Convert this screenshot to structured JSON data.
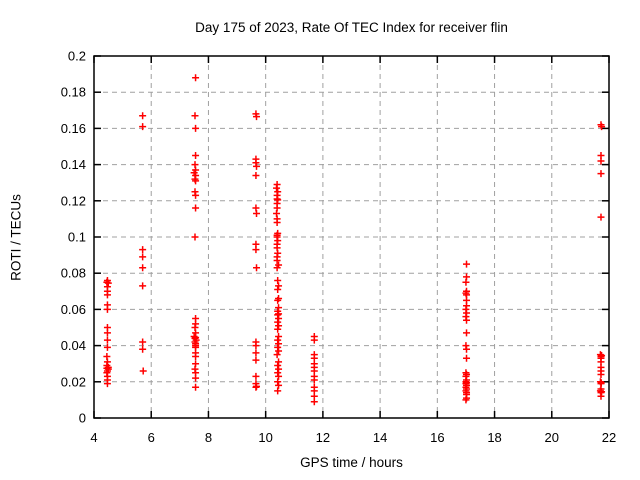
{
  "chart_data": {
    "type": "scatter",
    "title": "Day 175 of 2023, Rate Of TEC Index for receiver flin",
    "xlabel": "GPS time / hours",
    "ylabel": "ROTI / TECUs",
    "xlim": [
      4,
      22
    ],
    "ylim": [
      0,
      0.2
    ],
    "xticks": [
      4,
      6,
      8,
      10,
      12,
      14,
      16,
      18,
      20,
      22
    ],
    "xtick_labels": [
      "4",
      "6",
      "8",
      "10",
      "12",
      "14",
      "16",
      "18",
      "20",
      "22"
    ],
    "yticks": [
      0,
      0.02,
      0.04,
      0.06,
      0.08,
      0.1,
      0.12,
      0.14,
      0.16,
      0.18,
      0.2
    ],
    "ytick_labels": [
      "0",
      "0.02",
      "0.04",
      "0.06",
      "0.08",
      "0.1",
      "0.12",
      "0.14",
      "0.16",
      "0.18",
      "0.2"
    ],
    "grid": true,
    "legend_position": "none",
    "marker": "plus",
    "marker_color": "#ff0000",
    "grid_color": "#a0a0a0",
    "border_color": "#000000",
    "series": [
      {
        "name": "ROTI",
        "points": [
          [
            4.47,
            0.076
          ],
          [
            4.45,
            0.075
          ],
          [
            4.5,
            0.0745
          ],
          [
            4.47,
            0.0725
          ],
          [
            4.47,
            0.07
          ],
          [
            4.47,
            0.068
          ],
          [
            4.47,
            0.0625
          ],
          [
            4.47,
            0.06
          ],
          [
            4.47,
            0.05
          ],
          [
            4.47,
            0.047
          ],
          [
            4.47,
            0.043
          ],
          [
            4.47,
            0.039
          ],
          [
            4.45,
            0.034
          ],
          [
            4.47,
            0.031
          ],
          [
            4.45,
            0.029
          ],
          [
            4.5,
            0.028
          ],
          [
            4.45,
            0.0275
          ],
          [
            4.5,
            0.027
          ],
          [
            4.47,
            0.026
          ],
          [
            4.45,
            0.025
          ],
          [
            4.47,
            0.023
          ],
          [
            4.47,
            0.021
          ],
          [
            4.47,
            0.019
          ],
          [
            5.7,
            0.167
          ],
          [
            5.7,
            0.161
          ],
          [
            5.7,
            0.093
          ],
          [
            5.7,
            0.089
          ],
          [
            5.7,
            0.083
          ],
          [
            5.7,
            0.073
          ],
          [
            5.7,
            0.042
          ],
          [
            5.7,
            0.038
          ],
          [
            5.72,
            0.026
          ],
          [
            7.55,
            0.188
          ],
          [
            7.53,
            0.167
          ],
          [
            7.55,
            0.16
          ],
          [
            7.55,
            0.145
          ],
          [
            7.53,
            0.14
          ],
          [
            7.55,
            0.137
          ],
          [
            7.5,
            0.1355
          ],
          [
            7.55,
            0.134
          ],
          [
            7.53,
            0.132
          ],
          [
            7.55,
            0.131
          ],
          [
            7.53,
            0.125
          ],
          [
            7.55,
            0.123
          ],
          [
            7.55,
            0.116
          ],
          [
            7.53,
            0.1
          ],
          [
            7.55,
            0.055
          ],
          [
            7.55,
            0.052
          ],
          [
            7.53,
            0.05
          ],
          [
            7.55,
            0.047
          ],
          [
            7.5,
            0.045
          ],
          [
            7.55,
            0.0445
          ],
          [
            7.53,
            0.044
          ],
          [
            7.57,
            0.043
          ],
          [
            7.53,
            0.042
          ],
          [
            7.55,
            0.041
          ],
          [
            7.55,
            0.04
          ],
          [
            7.55,
            0.039
          ],
          [
            7.55,
            0.036
          ],
          [
            7.55,
            0.034
          ],
          [
            7.55,
            0.03
          ],
          [
            7.53,
            0.027
          ],
          [
            7.55,
            0.025
          ],
          [
            7.55,
            0.022
          ],
          [
            7.55,
            0.017
          ],
          [
            9.66,
            0.168
          ],
          [
            9.68,
            0.1665
          ],
          [
            9.66,
            0.143
          ],
          [
            9.66,
            0.141
          ],
          [
            9.68,
            0.139
          ],
          [
            9.66,
            0.134
          ],
          [
            9.66,
            0.116
          ],
          [
            9.68,
            0.113
          ],
          [
            9.66,
            0.096
          ],
          [
            9.66,
            0.093
          ],
          [
            9.68,
            0.083
          ],
          [
            9.66,
            0.042
          ],
          [
            9.66,
            0.04
          ],
          [
            9.66,
            0.036
          ],
          [
            9.66,
            0.032
          ],
          [
            9.66,
            0.023
          ],
          [
            9.66,
            0.019
          ],
          [
            9.68,
            0.0175
          ],
          [
            9.66,
            0.017
          ],
          [
            10.4,
            0.129
          ],
          [
            10.38,
            0.127
          ],
          [
            10.42,
            0.125
          ],
          [
            10.4,
            0.123
          ],
          [
            10.4,
            0.121
          ],
          [
            10.42,
            0.1205
          ],
          [
            10.4,
            0.1185
          ],
          [
            10.4,
            0.116
          ],
          [
            10.38,
            0.113
          ],
          [
            10.4,
            0.11
          ],
          [
            10.4,
            0.108
          ],
          [
            10.42,
            0.102
          ],
          [
            10.4,
            0.101
          ],
          [
            10.4,
            0.1
          ],
          [
            10.42,
            0.098
          ],
          [
            10.4,
            0.096
          ],
          [
            10.4,
            0.094
          ],
          [
            10.42,
            0.091
          ],
          [
            10.4,
            0.089
          ],
          [
            10.4,
            0.087
          ],
          [
            10.45,
            0.0845
          ],
          [
            10.4,
            0.083
          ],
          [
            10.42,
            0.076
          ],
          [
            10.45,
            0.073
          ],
          [
            10.42,
            0.071
          ],
          [
            10.45,
            0.066
          ],
          [
            10.42,
            0.065
          ],
          [
            10.45,
            0.061
          ],
          [
            10.42,
            0.059
          ],
          [
            10.45,
            0.0575
          ],
          [
            10.42,
            0.057
          ],
          [
            10.45,
            0.055
          ],
          [
            10.42,
            0.053
          ],
          [
            10.45,
            0.051
          ],
          [
            10.42,
            0.049
          ],
          [
            10.45,
            0.045
          ],
          [
            10.42,
            0.043
          ],
          [
            10.45,
            0.041
          ],
          [
            10.42,
            0.039
          ],
          [
            10.45,
            0.037
          ],
          [
            10.4,
            0.035
          ],
          [
            10.45,
            0.031
          ],
          [
            10.42,
            0.029
          ],
          [
            10.45,
            0.027
          ],
          [
            10.42,
            0.025
          ],
          [
            10.45,
            0.023
          ],
          [
            10.42,
            0.02
          ],
          [
            10.45,
            0.018
          ],
          [
            10.42,
            0.015
          ],
          [
            11.7,
            0.045
          ],
          [
            11.7,
            0.043
          ],
          [
            11.7,
            0.035
          ],
          [
            11.7,
            0.033
          ],
          [
            11.7,
            0.03
          ],
          [
            11.7,
            0.028
          ],
          [
            11.7,
            0.026
          ],
          [
            11.7,
            0.023
          ],
          [
            11.7,
            0.021
          ],
          [
            11.7,
            0.017
          ],
          [
            11.7,
            0.015
          ],
          [
            11.7,
            0.012
          ],
          [
            11.7,
            0.009
          ],
          [
            17.02,
            0.085
          ],
          [
            17.02,
            0.078
          ],
          [
            17.0,
            0.075
          ],
          [
            17.02,
            0.07
          ],
          [
            17.0,
            0.069
          ],
          [
            17.02,
            0.068
          ],
          [
            17.02,
            0.065
          ],
          [
            17.02,
            0.062
          ],
          [
            17.0,
            0.06
          ],
          [
            17.02,
            0.058
          ],
          [
            17.0,
            0.056
          ],
          [
            17.02,
            0.054
          ],
          [
            17.02,
            0.047
          ],
          [
            17.0,
            0.04
          ],
          [
            17.02,
            0.038
          ],
          [
            17.02,
            0.033
          ],
          [
            17.0,
            0.025
          ],
          [
            17.02,
            0.024
          ],
          [
            17.0,
            0.023
          ],
          [
            17.02,
            0.021
          ],
          [
            17.0,
            0.02
          ],
          [
            17.02,
            0.0195
          ],
          [
            17.0,
            0.019
          ],
          [
            17.02,
            0.018
          ],
          [
            17.0,
            0.017
          ],
          [
            17.02,
            0.016
          ],
          [
            17.0,
            0.015
          ],
          [
            17.02,
            0.014
          ],
          [
            17.02,
            0.013
          ],
          [
            17.02,
            0.011
          ],
          [
            17.0,
            0.01
          ],
          [
            21.72,
            0.162
          ],
          [
            21.74,
            0.161
          ],
          [
            21.72,
            0.145
          ],
          [
            21.72,
            0.142
          ],
          [
            21.72,
            0.135
          ],
          [
            21.72,
            0.111
          ],
          [
            21.7,
            0.035
          ],
          [
            21.74,
            0.0345
          ],
          [
            21.72,
            0.034
          ],
          [
            21.72,
            0.033
          ],
          [
            21.72,
            0.031
          ],
          [
            21.72,
            0.028
          ],
          [
            21.72,
            0.026
          ],
          [
            21.72,
            0.024
          ],
          [
            21.7,
            0.02
          ],
          [
            21.73,
            0.0195
          ],
          [
            21.72,
            0.019
          ],
          [
            21.72,
            0.016
          ],
          [
            21.7,
            0.015
          ],
          [
            21.74,
            0.0145
          ],
          [
            21.72,
            0.014
          ],
          [
            21.72,
            0.012
          ]
        ]
      }
    ]
  }
}
